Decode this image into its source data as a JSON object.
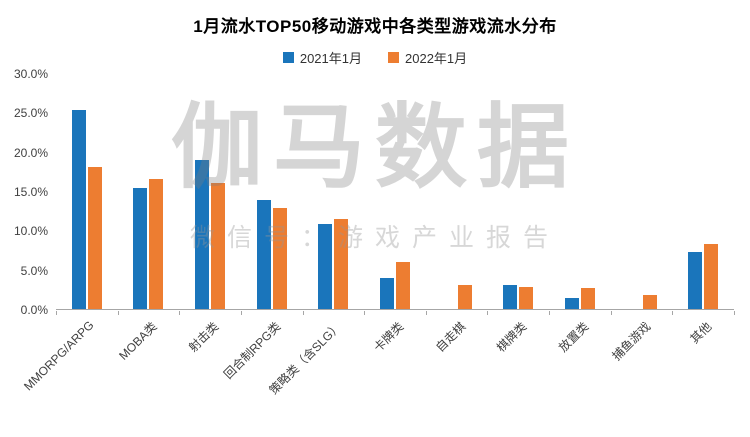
{
  "watermark": {
    "main": "伽马数据",
    "sub": "微信号：游戏产业报告"
  },
  "chart_data": {
    "type": "bar",
    "title": "1月流水TOP50移动游戏中各类型游戏流水分布",
    "categories": [
      "MMORPG/ARPG",
      "MOBA类",
      "射击类",
      "回合制RPG类",
      "策略类（含SLG）",
      "卡牌类",
      "自走棋",
      "棋牌类",
      "放置类",
      "捕鱼游戏",
      "其他"
    ],
    "series": [
      {
        "name": "2021年1月",
        "color": "#1A75BB",
        "values": [
          25.3,
          15.4,
          18.9,
          13.9,
          10.8,
          4.0,
          0,
          3.0,
          1.4,
          0,
          7.2
        ]
      },
      {
        "name": "2022年1月",
        "color": "#ED7D31",
        "values": [
          18.1,
          16.5,
          16.0,
          12.8,
          11.4,
          6.0,
          3.0,
          2.8,
          2.7,
          1.8,
          8.2
        ]
      }
    ],
    "ylim": [
      0,
      30
    ],
    "ytick_step": 5,
    "ytick_labels": [
      "0.0%",
      "5.0%",
      "10.0%",
      "15.0%",
      "20.0%",
      "25.0%",
      "30.0%"
    ],
    "grid": false,
    "legend_position": "top"
  }
}
